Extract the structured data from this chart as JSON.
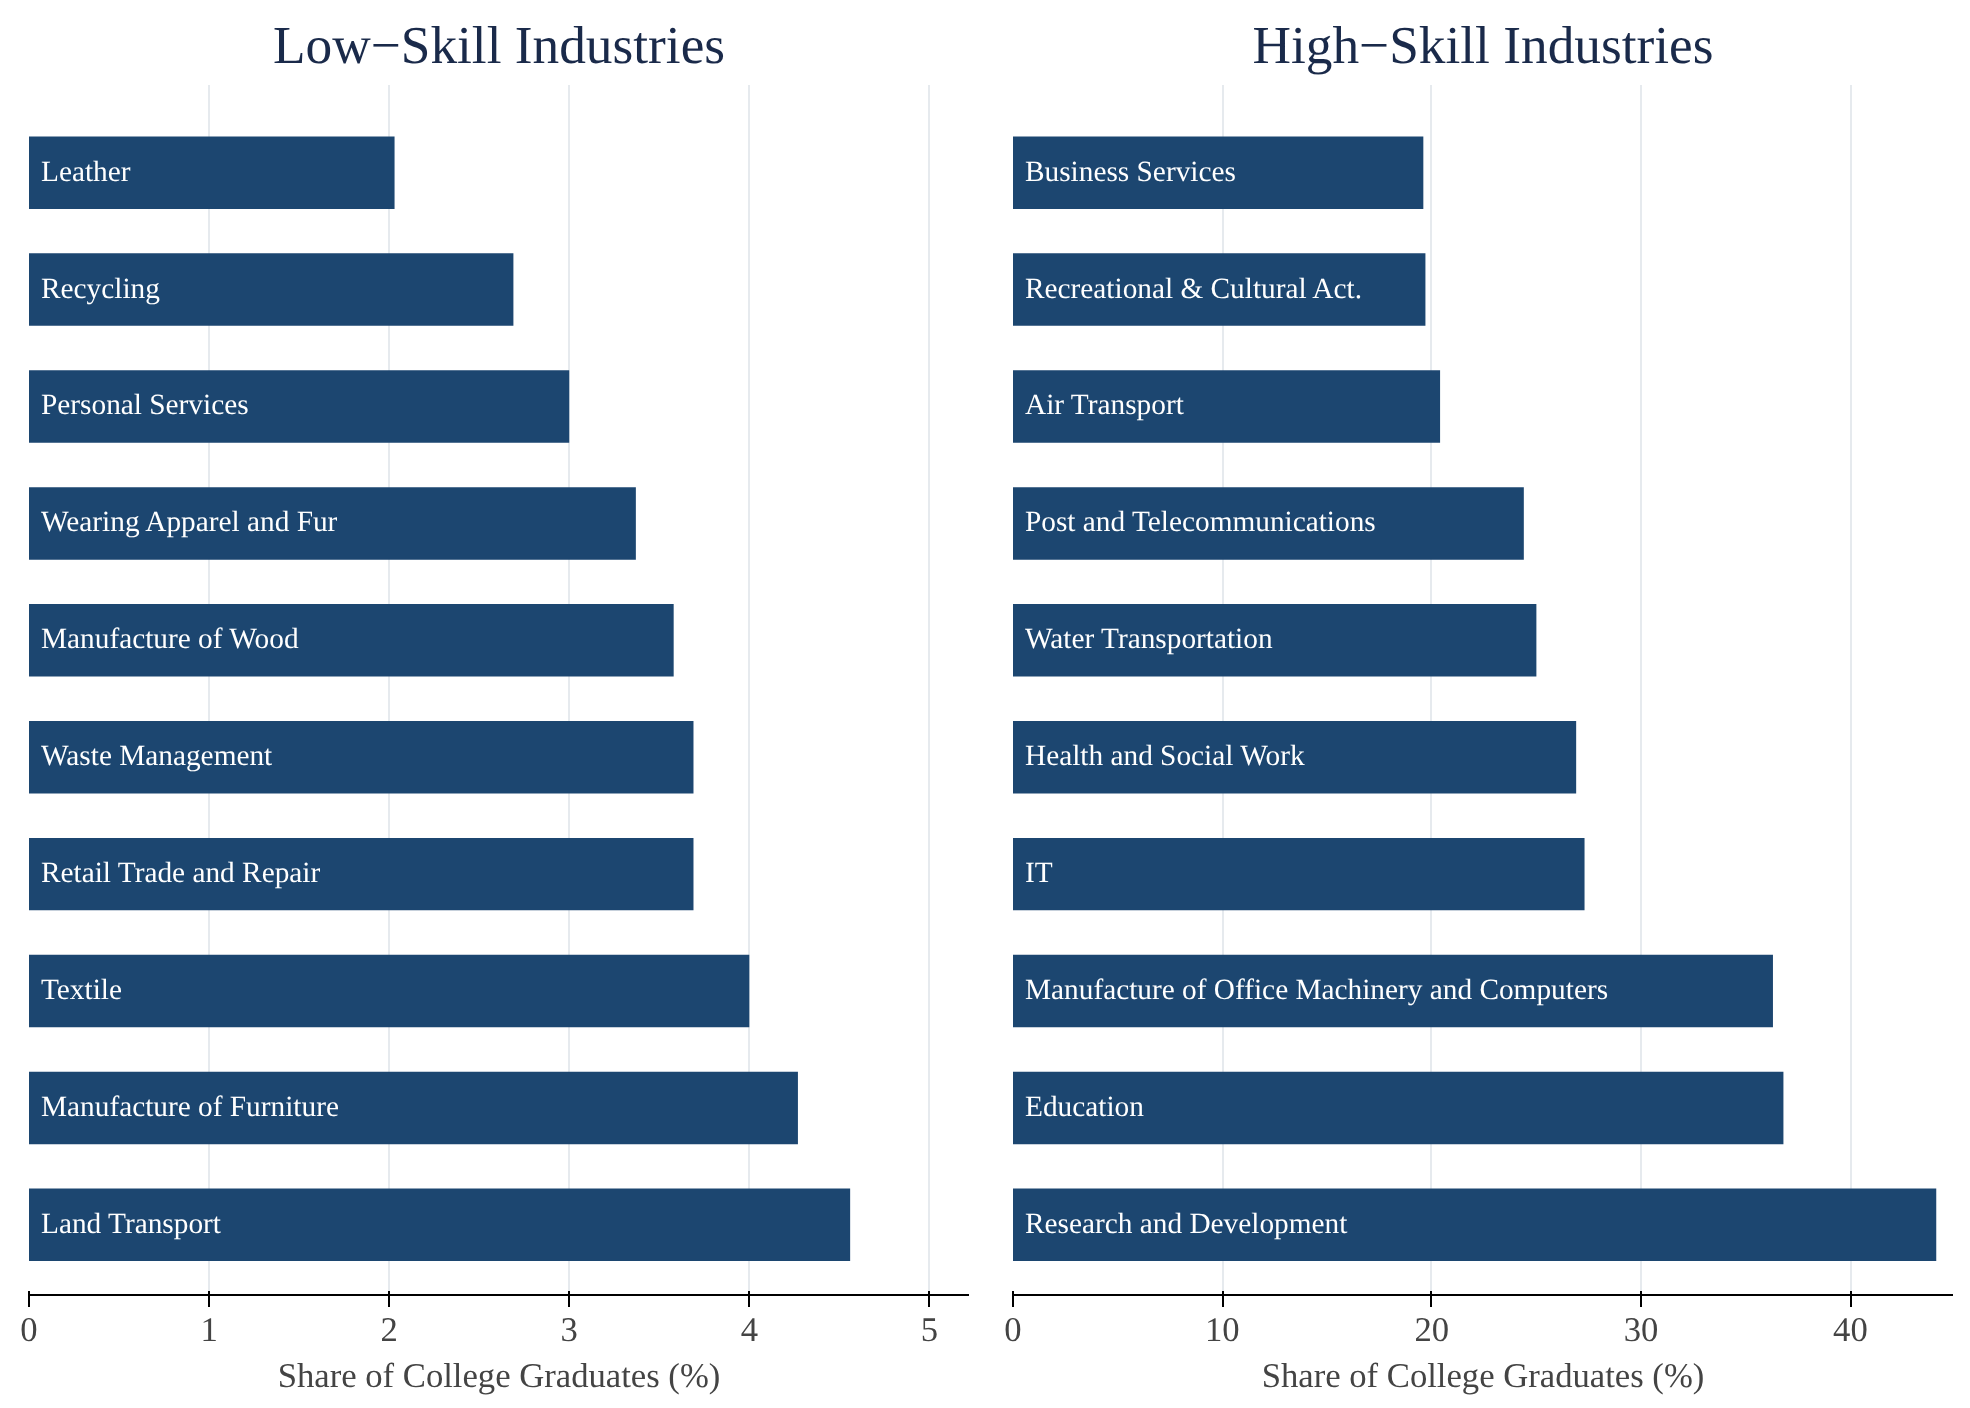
{
  "chart_data": [
    {
      "type": "bar",
      "orientation": "horizontal",
      "title": "Low−Skill Industries",
      "xlabel": "Share of College Graduates (%)",
      "categories": [
        "Leather",
        "Recycling",
        "Personal Services",
        "Wearing Apparel and Fur",
        "Manufacture of Wood",
        "Waste Management",
        "Retail Trade and Repair",
        "Textile",
        "Manufacture of Furniture",
        "Land Transport"
      ],
      "values": [
        2.03,
        2.69,
        3.0,
        3.37,
        3.58,
        3.69,
        3.69,
        4.0,
        4.27,
        4.56
      ],
      "color": "#1c4670",
      "xlim": [
        0,
        5.22
      ],
      "xticks": [
        0,
        1,
        2,
        3,
        4,
        5
      ],
      "grid": "x"
    },
    {
      "type": "bar",
      "orientation": "horizontal",
      "title": "High−Skill Industries",
      "xlabel": "Share of College Graduates (%)",
      "categories": [
        "Business Services",
        "Recreational & Cultural Act.",
        "Air Transport",
        "Post and Telecommunications",
        "Water Transportation",
        "Health and Social Work",
        "IT",
        "Manufacture of Office Machinery and Computers",
        "Education",
        "Research and Development"
      ],
      "values": [
        19.6,
        19.7,
        20.4,
        24.4,
        25.0,
        26.9,
        27.3,
        36.3,
        36.8,
        44.1
      ],
      "color": "#1c4670",
      "xlim": [
        0,
        44.9
      ],
      "xticks": [
        0,
        10,
        20,
        30,
        40
      ],
      "grid": "x"
    }
  ]
}
